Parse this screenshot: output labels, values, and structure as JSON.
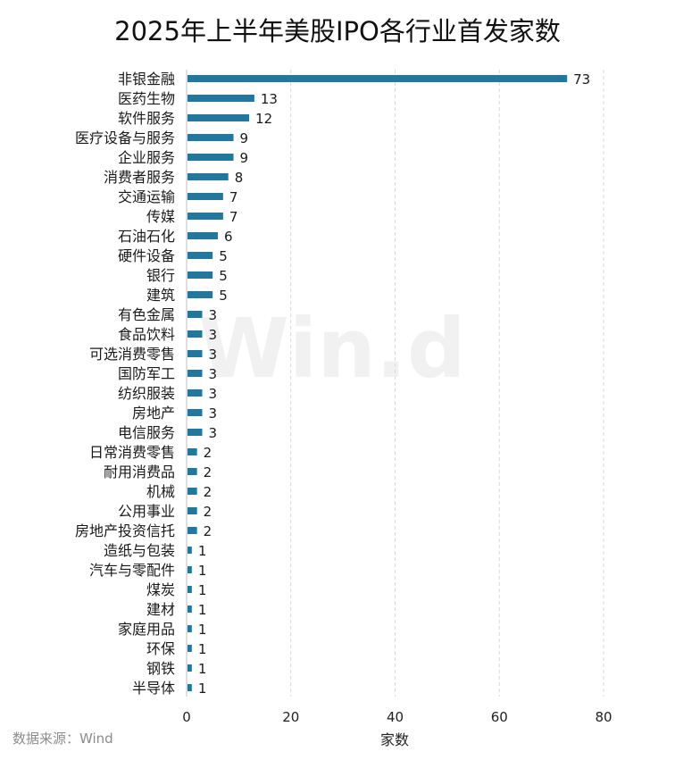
{
  "chart_data": {
    "type": "bar",
    "orientation": "horizontal",
    "title": "2025年上半年美股IPO各行业首发家数",
    "xlabel": "家数",
    "ylabel": "",
    "xlim": [
      0,
      80
    ],
    "xticks": [
      0,
      20,
      40,
      60,
      80
    ],
    "grid": "vertical dashed",
    "legend": "none",
    "categories": [
      "非银金融",
      "医药生物",
      "软件服务",
      "医疗设备与服务",
      "企业服务",
      "消费者服务",
      "交通运输",
      "传媒",
      "石油石化",
      "硬件设备",
      "银行",
      "建筑",
      "有色金属",
      "食品饮料",
      "可选消费零售",
      "国防军工",
      "纺织服装",
      "房地产",
      "电信服务",
      "日常消费零售",
      "耐用消费品",
      "机械",
      "公用事业",
      "房地产投资信托",
      "造纸与包装",
      "汽车与零配件",
      "煤炭",
      "建材",
      "家庭用品",
      "环保",
      "钢铁",
      "半导体"
    ],
    "values": [
      73,
      13,
      12,
      9,
      9,
      8,
      7,
      7,
      6,
      5,
      5,
      5,
      3,
      3,
      3,
      3,
      3,
      3,
      3,
      2,
      2,
      2,
      2,
      2,
      1,
      1,
      1,
      1,
      1,
      1,
      1,
      1
    ],
    "bar_color": "#23779c",
    "watermark": "Win.d",
    "source": "数据来源：Wind"
  }
}
